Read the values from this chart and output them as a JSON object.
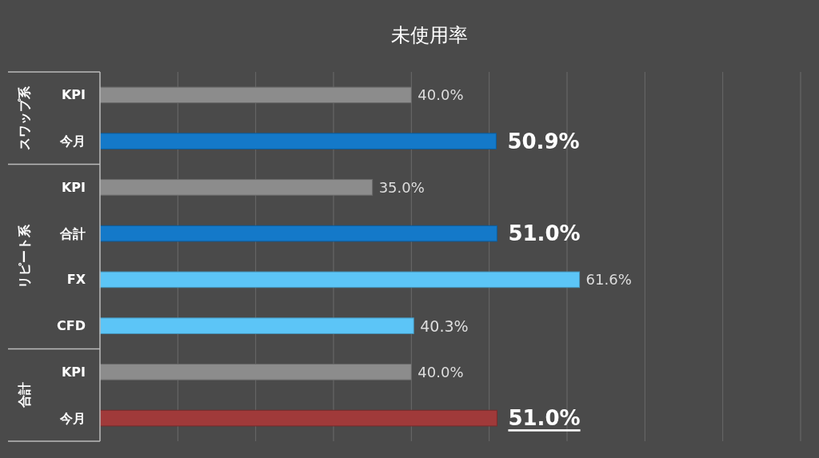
{
  "chart_data": {
    "type": "bar",
    "orientation": "horizontal",
    "title": "未使用率",
    "categories": [
      "KPI",
      "今月",
      "KPI",
      "合計",
      "FX",
      "CFD",
      "KPI",
      "今月"
    ],
    "values": [
      40.0,
      50.9,
      35.0,
      51.0,
      61.6,
      40.3,
      40.0,
      51.0
    ],
    "colors": [
      "#8c8c8c",
      "#1479c9",
      "#8c8c8c",
      "#1479c9",
      "#5cc5f7",
      "#5cc5f7",
      "#8c8c8c",
      "#a03a3a"
    ],
    "value_labels": [
      "40.0%",
      "50.9%",
      "35.0%",
      "51.0%",
      "61.6%",
      "40.3%",
      "40.0%",
      "51.0%"
    ],
    "xlim": [
      0,
      90
    ],
    "xticks": [
      {
        "value": 10,
        "label": null
      },
      {
        "value": 20,
        "label": null
      },
      {
        "value": 30,
        "label": null
      },
      {
        "value": 40,
        "label": null
      },
      {
        "value": 50,
        "label": null
      },
      {
        "value": 60,
        "label": null
      },
      {
        "value": 70,
        "label": null
      },
      {
        "value": 80,
        "label": null
      },
      {
        "value": 90,
        "label": null
      }
    ],
    "tick_labels": "y",
    "grid": "x",
    "annotations": [
      "スワップ系",
      "リピート系",
      "合計"
    ]
  }
}
